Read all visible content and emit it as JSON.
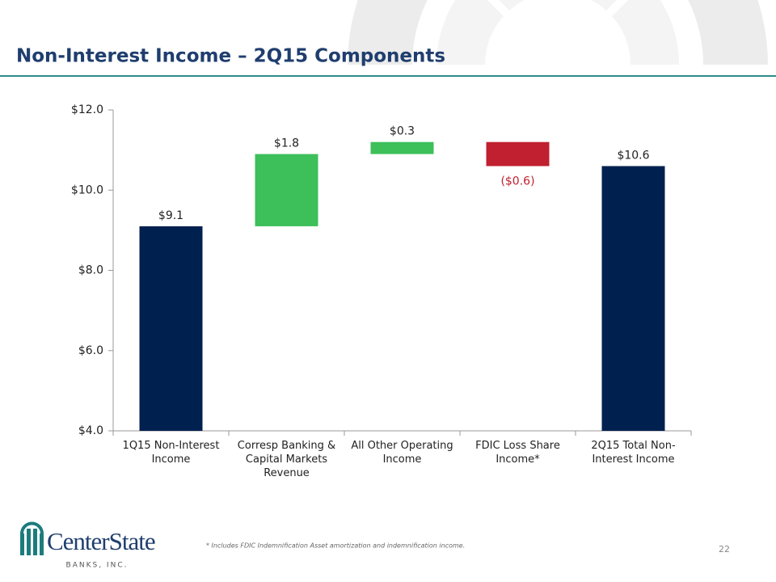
{
  "header": {
    "title": "Non-Interest Income – 2Q15 Components"
  },
  "chart_data": {
    "type": "waterfall",
    "categories": [
      "1Q15 Non-Interest Income",
      "Corresp Banking & Capital Markets Revenue",
      "All Other Operating Income",
      "FDIC Loss Share Income*",
      "2Q15 Total Non-Interest Income"
    ],
    "values": [
      9.1,
      1.8,
      0.3,
      -0.6,
      10.6
    ],
    "value_labels": [
      "$9.1",
      "$1.8",
      "$0.3",
      "($0.6)",
      "$10.6"
    ],
    "measures": [
      "absolute",
      "relative",
      "relative",
      "relative",
      "total"
    ],
    "colors": {
      "total": "#00204f",
      "increase": "#3dbf5a",
      "decrease": "#c0202f"
    },
    "ylim": [
      4,
      12
    ],
    "yticks": [
      {
        "value": 4,
        "label": "$4.0"
      },
      {
        "value": 6,
        "label": "$6.0"
      },
      {
        "value": 8,
        "label": "$8.0"
      },
      {
        "value": 10,
        "label": "$10.0"
      },
      {
        "value": 12,
        "label": "$12.0"
      }
    ]
  },
  "footer": {
    "footnote": "*  Includes FDIC Indemnification Asset amortization and indemnification income.",
    "page_number": "22",
    "logo": "CenterState",
    "logo_sub": "BANKS, INC."
  }
}
